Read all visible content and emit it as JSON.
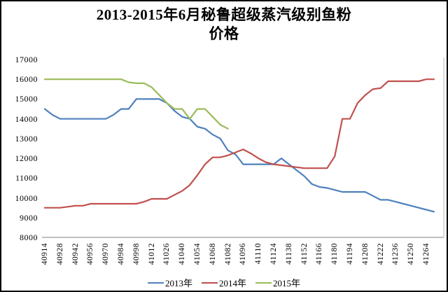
{
  "title": {
    "line1": "2013-2015年6月秘鲁超级蒸汽级别鱼粉",
    "line2": "价格"
  },
  "legend": [
    {
      "label": "2013年",
      "color": "#4f81bd"
    },
    {
      "label": "2014年",
      "color": "#c0504d"
    },
    {
      "label": "2015年",
      "color": "#9bbb59"
    }
  ],
  "colors": {
    "axis_line": "#9a9a9a",
    "plot_right_border": "#c9c9c9",
    "series_2013": "#4f81bd",
    "series_2014": "#c0504d",
    "series_2015": "#9bbb59"
  },
  "chart_data": {
    "type": "line",
    "title": "2013-2015年6月秘鲁超级蒸汽级别鱼粉价格",
    "xlabel": "",
    "ylabel": "",
    "ylim": [
      8000,
      17000
    ],
    "y_ticks": [
      17000,
      16000,
      15000,
      14000,
      13000,
      12000,
      11000,
      10000,
      9000,
      8000
    ],
    "grid": false,
    "legend_position": "bottom",
    "x_tick_labels": [
      "40914",
      "40928",
      "40942",
      "40956",
      "40970",
      "40984",
      "40998",
      "41012",
      "41026",
      "41040",
      "41054",
      "41068",
      "41082",
      "41096",
      "41110",
      "41124",
      "41138",
      "41152",
      "41166",
      "41180",
      "41194",
      "41208",
      "41222",
      "41236",
      "41250",
      "41264"
    ],
    "points_per_tick": 2,
    "x_step_days": 7,
    "series": [
      {
        "name": "2013年",
        "color": "#4f81bd",
        "values": [
          14500,
          14200,
          14000,
          14000,
          14000,
          14000,
          14000,
          14000,
          14000,
          14200,
          14500,
          14500,
          15000,
          15000,
          15000,
          15000,
          14800,
          14400,
          14100,
          14000,
          13600,
          13500,
          13200,
          13000,
          12400,
          12200,
          11700,
          11700,
          11700,
          11700,
          11700,
          12000,
          11700,
          11400,
          11100,
          10700,
          10550,
          10500,
          10400,
          10300,
          10300,
          10300,
          10300,
          10100,
          9900,
          9900,
          9800,
          9700,
          9600,
          9500,
          9400,
          9300
        ]
      },
      {
        "name": "2014年",
        "color": "#c0504d",
        "values": [
          9500,
          9500,
          9500,
          9550,
          9600,
          9600,
          9700,
          9700,
          9700,
          9700,
          9700,
          9700,
          9700,
          9800,
          9950,
          9950,
          9950,
          10150,
          10350,
          10650,
          11150,
          11700,
          12050,
          12050,
          12150,
          12300,
          12450,
          12250,
          12000,
          11800,
          11700,
          11650,
          11600,
          11550,
          11500,
          11500,
          11500,
          11500,
          12100,
          14000,
          14000,
          14800,
          15200,
          15500,
          15550,
          15900,
          15900,
          15900,
          15900,
          15900,
          16000,
          16000
        ]
      },
      {
        "name": "2015年",
        "color": "#9bbb59",
        "values": [
          16000,
          16000,
          16000,
          16000,
          16000,
          16000,
          16000,
          16000,
          16000,
          16000,
          16000,
          15850,
          15800,
          15800,
          15600,
          15200,
          14800,
          14500,
          14500,
          14000,
          14500,
          14500,
          14100,
          13700,
          13500
        ]
      }
    ]
  }
}
